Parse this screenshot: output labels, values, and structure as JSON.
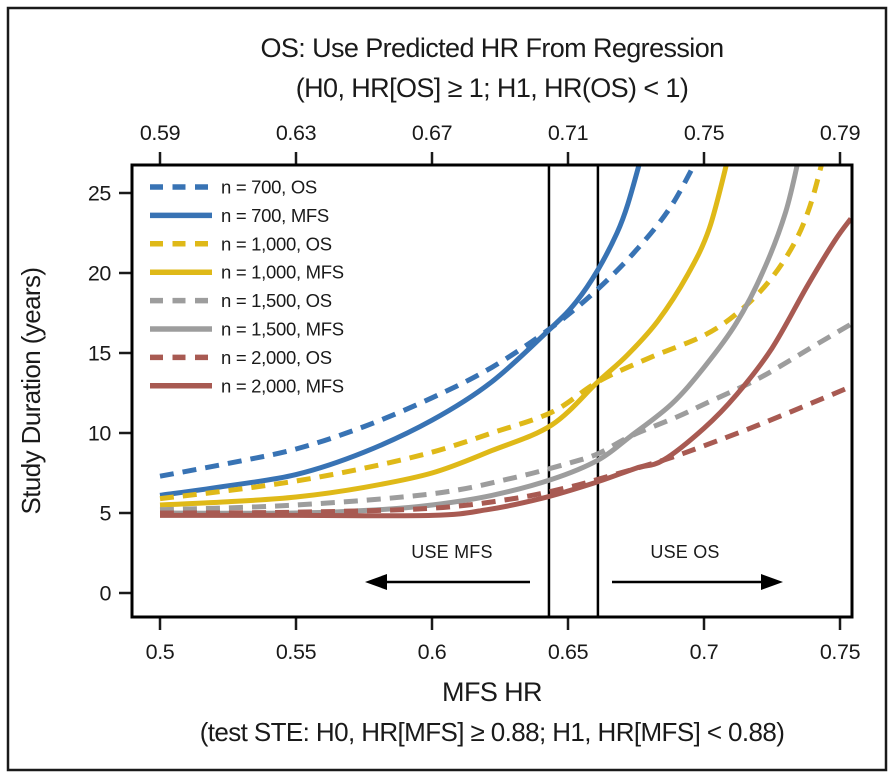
{
  "figure": {
    "background": "#ffffff",
    "border_color": "#1a1a1a"
  },
  "chart_data": {
    "type": "line",
    "title": "OS: Use Predicted HR From Regression",
    "subtitle": "(H0, HR[OS] ≥ 1; H1, HR(OS) < 1)",
    "xlabel": "MFS HR",
    "xlabel_note": "(test STE: H0, HR[MFS] ≥ 0.88; H1, HR[MFS] < 0.88)",
    "ylabel": "Study Duration (years)",
    "grid": false,
    "legend_position": "top-left",
    "x_axis_bottom": {
      "label": "MFS HR",
      "ticks": [
        {
          "label": "0.5",
          "value": 0.5
        },
        {
          "label": "0.55",
          "value": 0.55
        },
        {
          "label": "0.6",
          "value": 0.6
        },
        {
          "label": "0.65",
          "value": 0.65
        },
        {
          "label": "0.7",
          "value": 0.7
        },
        {
          "label": "0.75",
          "value": 0.75
        }
      ],
      "range": [
        0.49,
        0.7545
      ]
    },
    "x_axis_top": {
      "description": "Predicted OS HR from regression",
      "ticks": [
        {
          "label": "0.59",
          "at_mfs_hr": 0.5
        },
        {
          "label": "0.63",
          "at_mfs_hr": 0.55
        },
        {
          "label": "0.67",
          "at_mfs_hr": 0.6
        },
        {
          "label": "0.71",
          "at_mfs_hr": 0.65
        },
        {
          "label": "0.75",
          "at_mfs_hr": 0.7
        },
        {
          "label": "0.79",
          "at_mfs_hr": 0.75
        }
      ]
    },
    "y_axis": {
      "ticks": [
        {
          "label": "0",
          "value": 0
        },
        {
          "label": "5",
          "value": 5
        },
        {
          "label": "10",
          "value": 10
        },
        {
          "label": "15",
          "value": 15
        },
        {
          "label": "20",
          "value": 20
        },
        {
          "label": "25",
          "value": 25
        }
      ],
      "range": [
        -1.7,
        26.75
      ]
    },
    "vertical_lines_mfs_hr": [
      0.643,
      0.661
    ],
    "annotations": [
      {
        "text": "USE MFS",
        "arrow_direction": "left"
      },
      {
        "text": "USE OS",
        "arrow_direction": "right"
      }
    ],
    "series": [
      {
        "name": "n = 700, OS",
        "color": "#3873b4",
        "style": "dashed",
        "points": [
          [
            0.5,
            7.3
          ],
          [
            0.525,
            8.1
          ],
          [
            0.55,
            9.0
          ],
          [
            0.575,
            10.4
          ],
          [
            0.6,
            12.2
          ],
          [
            0.622,
            14.1
          ],
          [
            0.644,
            16.6
          ],
          [
            0.661,
            19.0
          ],
          [
            0.676,
            21.6
          ],
          [
            0.688,
            24.2
          ],
          [
            0.698,
            27.3
          ]
        ]
      },
      {
        "name": "n = 700, MFS",
        "color": "#3873b4",
        "style": "solid",
        "points": [
          [
            0.5,
            6.1
          ],
          [
            0.525,
            6.7
          ],
          [
            0.55,
            7.4
          ],
          [
            0.575,
            8.8
          ],
          [
            0.6,
            10.8
          ],
          [
            0.622,
            13.2
          ],
          [
            0.644,
            16.6
          ],
          [
            0.653,
            18.2
          ],
          [
            0.661,
            20.2
          ],
          [
            0.668,
            22.5
          ],
          [
            0.672,
            24.3
          ],
          [
            0.677,
            27.3
          ]
        ]
      },
      {
        "name": "n = 1,000, OS",
        "color": "#dfb918",
        "style": "dashed",
        "points": [
          [
            0.5,
            5.9
          ],
          [
            0.525,
            6.4
          ],
          [
            0.55,
            7.0
          ],
          [
            0.575,
            7.8
          ],
          [
            0.6,
            8.8
          ],
          [
            0.622,
            10.0
          ],
          [
            0.644,
            11.3
          ],
          [
            0.661,
            13.2
          ],
          [
            0.68,
            14.7
          ],
          [
            0.7,
            16.1
          ],
          [
            0.713,
            17.6
          ],
          [
            0.724,
            19.5
          ],
          [
            0.733,
            21.8
          ],
          [
            0.739,
            24.2
          ],
          [
            0.744,
            27.3
          ]
        ]
      },
      {
        "name": "n = 1,000, MFS",
        "color": "#dfb918",
        "style": "solid",
        "points": [
          [
            0.5,
            5.5
          ],
          [
            0.525,
            5.7
          ],
          [
            0.55,
            6.0
          ],
          [
            0.575,
            6.6
          ],
          [
            0.6,
            7.5
          ],
          [
            0.622,
            8.9
          ],
          [
            0.644,
            10.5
          ],
          [
            0.661,
            13.2
          ],
          [
            0.672,
            14.9
          ],
          [
            0.683,
            17.0
          ],
          [
            0.694,
            19.9
          ],
          [
            0.702,
            22.8
          ],
          [
            0.709,
            27.3
          ]
        ]
      },
      {
        "name": "n = 1,500, OS",
        "color": "#9d9d9d",
        "style": "dashed",
        "points": [
          [
            0.5,
            5.2
          ],
          [
            0.55,
            5.5
          ],
          [
            0.6,
            6.2
          ],
          [
            0.63,
            7.2
          ],
          [
            0.65,
            8.1
          ],
          [
            0.661,
            8.7
          ],
          [
            0.673,
            9.8
          ],
          [
            0.69,
            11.0
          ],
          [
            0.7,
            11.8
          ],
          [
            0.72,
            13.4
          ],
          [
            0.74,
            15.4
          ],
          [
            0.754,
            16.8
          ]
        ]
      },
      {
        "name": "n = 1,500, MFS",
        "color": "#9d9d9d",
        "style": "solid",
        "points": [
          [
            0.5,
            5.0
          ],
          [
            0.55,
            5.0
          ],
          [
            0.58,
            5.2
          ],
          [
            0.6,
            5.5
          ],
          [
            0.622,
            6.1
          ],
          [
            0.644,
            7.1
          ],
          [
            0.661,
            8.3
          ],
          [
            0.673,
            9.8
          ],
          [
            0.688,
            11.8
          ],
          [
            0.7,
            14.1
          ],
          [
            0.712,
            16.9
          ],
          [
            0.722,
            20.2
          ],
          [
            0.73,
            23.8
          ],
          [
            0.735,
            27.3
          ]
        ]
      },
      {
        "name": "n = 2,000, OS",
        "color": "#a85a52",
        "style": "dashed",
        "points": [
          [
            0.5,
            5.0
          ],
          [
            0.55,
            5.05
          ],
          [
            0.6,
            5.3
          ],
          [
            0.63,
            5.9
          ],
          [
            0.65,
            6.6
          ],
          [
            0.665,
            7.3
          ],
          [
            0.685,
            8.3
          ],
          [
            0.7,
            9.2
          ],
          [
            0.72,
            10.5
          ],
          [
            0.74,
            11.9
          ],
          [
            0.754,
            12.9
          ]
        ]
      },
      {
        "name": "n = 2,000, MFS",
        "color": "#a85a52",
        "style": "solid",
        "points": [
          [
            0.5,
            4.85
          ],
          [
            0.55,
            4.85
          ],
          [
            0.6,
            4.85
          ],
          [
            0.62,
            5.2
          ],
          [
            0.64,
            5.9
          ],
          [
            0.66,
            6.9
          ],
          [
            0.675,
            7.8
          ],
          [
            0.685,
            8.3
          ],
          [
            0.7,
            10.3
          ],
          [
            0.712,
            12.4
          ],
          [
            0.725,
            15.3
          ],
          [
            0.738,
            19.2
          ],
          [
            0.748,
            22.0
          ],
          [
            0.754,
            23.4
          ]
        ]
      }
    ]
  }
}
